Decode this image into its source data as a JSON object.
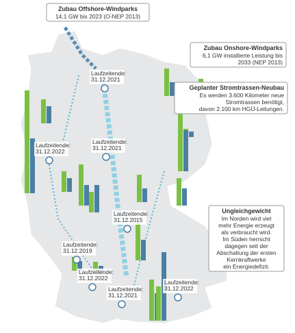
{
  "offshore": {
    "title": "Zubau Offshore-Windparks",
    "lines": [
      "14,1 GW bis 2023 (O-NEP 2013)"
    ]
  },
  "onshore": {
    "title": "Zubau Onshore-Windparks",
    "lines": [
      "6,1 GW installierte Leistung bis",
      "2033 (NEP 2013)"
    ]
  },
  "trassen": {
    "title": "Geplanter Stromtrassen-Neubau",
    "lines": [
      "Es werden 3.600 Kilometer neue",
      "Stromtrassen benötigt,",
      "davon 2.100 km HGÜ-Leitungen."
    ]
  },
  "ungleichgewicht": {
    "title": "Ungleichgewicht",
    "lines": [
      "Im Norden wird viel",
      "mehr Energie erzeugt",
      "als verbraucht wird.",
      "Im Süden herrscht",
      "dagegen seit der",
      "Abschaltung der ersten",
      "Kernkraftwerke",
      "ein Energiedefizit."
    ]
  },
  "plants": [
    {
      "label": "Laufzeitende:",
      "date": "31.12.2021"
    },
    {
      "label": "Laufzeitende:",
      "date": "31.12.2022"
    },
    {
      "label": "Laufzeitende:",
      "date": "31.12.2021"
    },
    {
      "label": "Laufzeitende:",
      "date": "31.12.2015"
    },
    {
      "label": "Laufzeitende:",
      "date": "31.12.2019"
    },
    {
      "label": "Laufzeitende:",
      "date": "31.12.2022"
    },
    {
      "label": "Laufzeitende:",
      "date": "31.12.2021"
    },
    {
      "label": "Laufzeitende:",
      "date": "31.12.2022"
    }
  ]
}
